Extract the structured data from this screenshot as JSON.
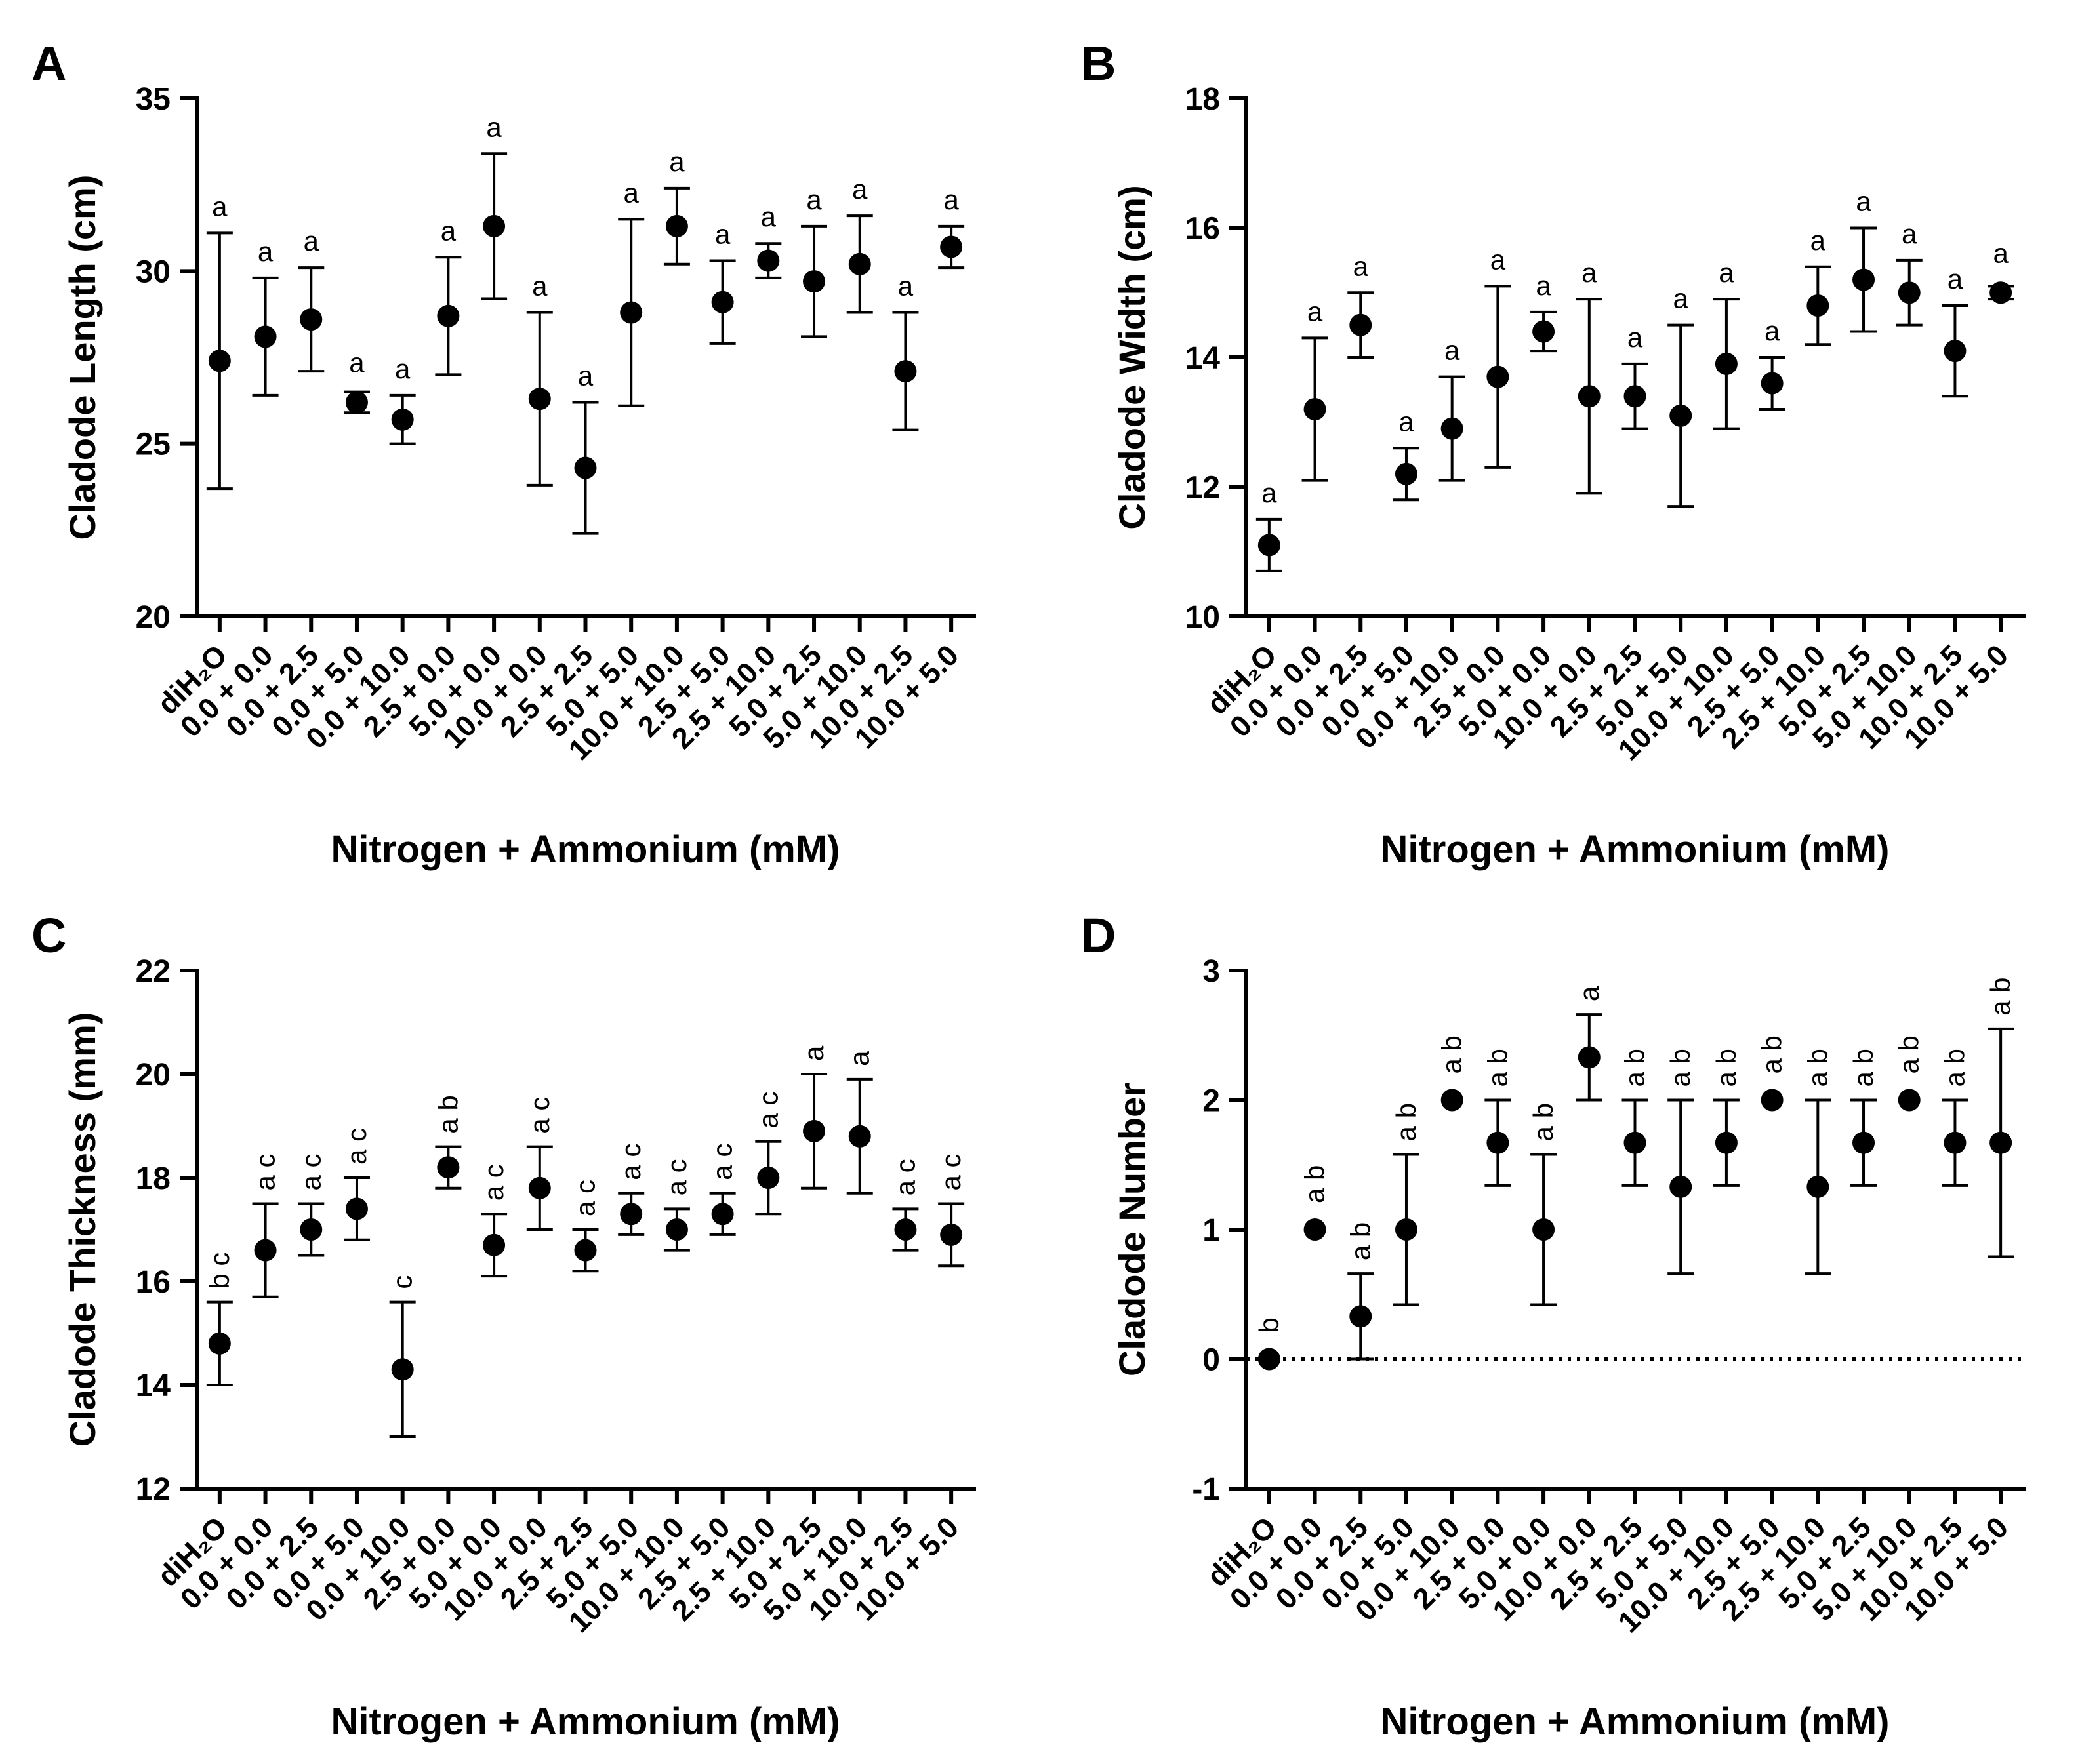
{
  "figure": {
    "categories": [
      "diH₂O",
      "0.0 + 0.0",
      "0.0 + 2.5",
      "0.0 + 5.0",
      "0.0 + 10.0",
      "2.5 + 0.0",
      "5.0 + 0.0",
      "10.0 + 0.0",
      "2.5 + 2.5",
      "5.0 + 5.0",
      "10.0 + 10.0",
      "2.5 + 5.0",
      "2.5 + 10.0",
      "5.0 + 2.5",
      "5.0 + 10.0",
      "10.0 + 2.5",
      "10.0 + 5.0"
    ]
  },
  "chart_data": [
    {
      "panel": "A",
      "type": "scatter",
      "xlabel": "Nitrogen + Ammonium (mM)",
      "ylabel": "Cladode Length (cm)",
      "ylim": [
        20,
        35
      ],
      "yticks": [
        20,
        25,
        30,
        35
      ],
      "categories": [
        "diH₂O",
        "0.0 + 0.0",
        "0.0 + 2.5",
        "0.0 + 5.0",
        "0.0 + 10.0",
        "2.5 + 0.0",
        "5.0 + 0.0",
        "10.0 + 0.0",
        "2.5 + 2.5",
        "5.0 + 5.0",
        "10.0 + 10.0",
        "2.5 + 5.0",
        "2.5 + 10.0",
        "5.0 + 2.5",
        "5.0 + 10.0",
        "10.0 + 2.5",
        "10.0 + 5.0"
      ],
      "values": [
        27.4,
        28.1,
        28.6,
        26.2,
        25.7,
        28.7,
        31.3,
        26.3,
        24.3,
        28.8,
        31.3,
        29.1,
        30.3,
        29.7,
        30.2,
        27.1,
        30.7
      ],
      "errors": [
        3.7,
        1.7,
        1.5,
        0.3,
        0.7,
        1.7,
        2.1,
        2.5,
        1.9,
        2.7,
        1.1,
        1.2,
        0.5,
        1.6,
        1.4,
        1.7,
        0.6
      ],
      "significance": [
        "a",
        "a",
        "a",
        "a",
        "a",
        "a",
        "a",
        "a",
        "a",
        "a",
        "a",
        "a",
        "a",
        "a",
        "a",
        "a",
        "a"
      ]
    },
    {
      "panel": "B",
      "type": "scatter",
      "xlabel": "Nitrogen + Ammonium (mM)",
      "ylabel": "Cladode Width (cm)",
      "ylim": [
        10,
        18
      ],
      "yticks": [
        10,
        12,
        14,
        16,
        18
      ],
      "categories": [
        "diH₂O",
        "0.0 + 0.0",
        "0.0 + 2.5",
        "0.0 + 5.0",
        "0.0 + 10.0",
        "2.5 + 0.0",
        "5.0 + 0.0",
        "10.0 + 0.0",
        "2.5 + 2.5",
        "5.0 + 5.0",
        "10.0 + 10.0",
        "2.5 + 5.0",
        "2.5 + 10.0",
        "5.0 + 2.5",
        "5.0 + 10.0",
        "10.0 + 2.5",
        "10.0 + 5.0"
      ],
      "values": [
        11.1,
        13.2,
        14.5,
        12.2,
        12.9,
        13.7,
        14.4,
        13.4,
        13.4,
        13.1,
        13.9,
        13.6,
        14.8,
        15.2,
        15.0,
        14.1,
        15.0
      ],
      "errors": [
        0.4,
        1.1,
        0.5,
        0.4,
        0.8,
        1.4,
        0.3,
        1.5,
        0.5,
        1.4,
        1.0,
        0.4,
        0.6,
        0.8,
        0.5,
        0.7,
        0.1
      ],
      "significance": [
        "a",
        "a",
        "a",
        "a",
        "a",
        "a",
        "a",
        "a",
        "a",
        "a",
        "a",
        "a",
        "a",
        "a",
        "a",
        "a",
        "a"
      ]
    },
    {
      "panel": "C",
      "type": "scatter",
      "xlabel": "Nitrogen + Ammonium (mM)",
      "ylabel": "Cladode Thickness (mm)",
      "ylim": [
        12,
        22
      ],
      "yticks": [
        12,
        14,
        16,
        18,
        20,
        22
      ],
      "categories": [
        "diH₂O",
        "0.0 + 0.0",
        "0.0 + 2.5",
        "0.0 + 5.0",
        "0.0 + 10.0",
        "2.5 + 0.0",
        "5.0 + 0.0",
        "10.0 + 0.0",
        "2.5 + 2.5",
        "5.0 + 5.0",
        "10.0 + 10.0",
        "2.5 + 5.0",
        "2.5 + 10.0",
        "5.0 + 2.5",
        "5.0 + 10.0",
        "10.0 + 2.5",
        "10.0 + 5.0"
      ],
      "values": [
        14.8,
        16.6,
        17.0,
        17.4,
        14.3,
        18.2,
        16.7,
        17.8,
        16.6,
        17.3,
        17.0,
        17.3,
        18.0,
        18.9,
        18.8,
        17.0,
        16.9
      ],
      "errors": [
        0.8,
        0.9,
        0.5,
        0.6,
        1.3,
        0.4,
        0.6,
        0.8,
        0.4,
        0.4,
        0.4,
        0.4,
        0.7,
        1.1,
        1.1,
        0.4,
        0.6
      ],
      "significance": [
        "b c",
        "a c",
        "a c",
        "a c",
        "c",
        "a b",
        "a c",
        "a c",
        "a c",
        "a c",
        "a c",
        "a c",
        "a c",
        "a",
        "a",
        "a c",
        "a c"
      ]
    },
    {
      "panel": "D",
      "type": "scatter",
      "xlabel": "Nitrogen + Ammonium (mM)",
      "ylabel": "Cladode Number",
      "ylim": [
        -1,
        3
      ],
      "yticks": [
        -1,
        0,
        1,
        2,
        3
      ],
      "reference_line": 0,
      "categories": [
        "diH₂O",
        "0.0 + 0.0",
        "0.0 + 2.5",
        "0.0 + 5.0",
        "0.0 + 10.0",
        "2.5 + 0.0",
        "5.0 + 0.0",
        "10.0 + 0.0",
        "2.5 + 2.5",
        "5.0 + 5.0",
        "10.0 + 10.0",
        "2.5 + 5.0",
        "2.5 + 10.0",
        "5.0 + 2.5",
        "5.0 + 10.0",
        "10.0 + 2.5",
        "10.0 + 5.0"
      ],
      "values": [
        0.0,
        1.0,
        0.33,
        1.0,
        2.0,
        1.67,
        1.0,
        2.33,
        1.67,
        1.33,
        1.67,
        2.0,
        1.33,
        1.67,
        2.0,
        1.67,
        1.67
      ],
      "errors": [
        0.0,
        0.0,
        0.33,
        0.58,
        0.0,
        0.33,
        0.58,
        0.33,
        0.33,
        0.67,
        0.33,
        0.0,
        0.67,
        0.33,
        0.0,
        0.33,
        0.88
      ],
      "significance": [
        "b",
        "a b",
        "a b",
        "a b",
        "a b",
        "a b",
        "a b",
        "a",
        "a b",
        "a b",
        "a b",
        "a b",
        "a b",
        "a b",
        "a b",
        "a b",
        "a b"
      ]
    }
  ]
}
